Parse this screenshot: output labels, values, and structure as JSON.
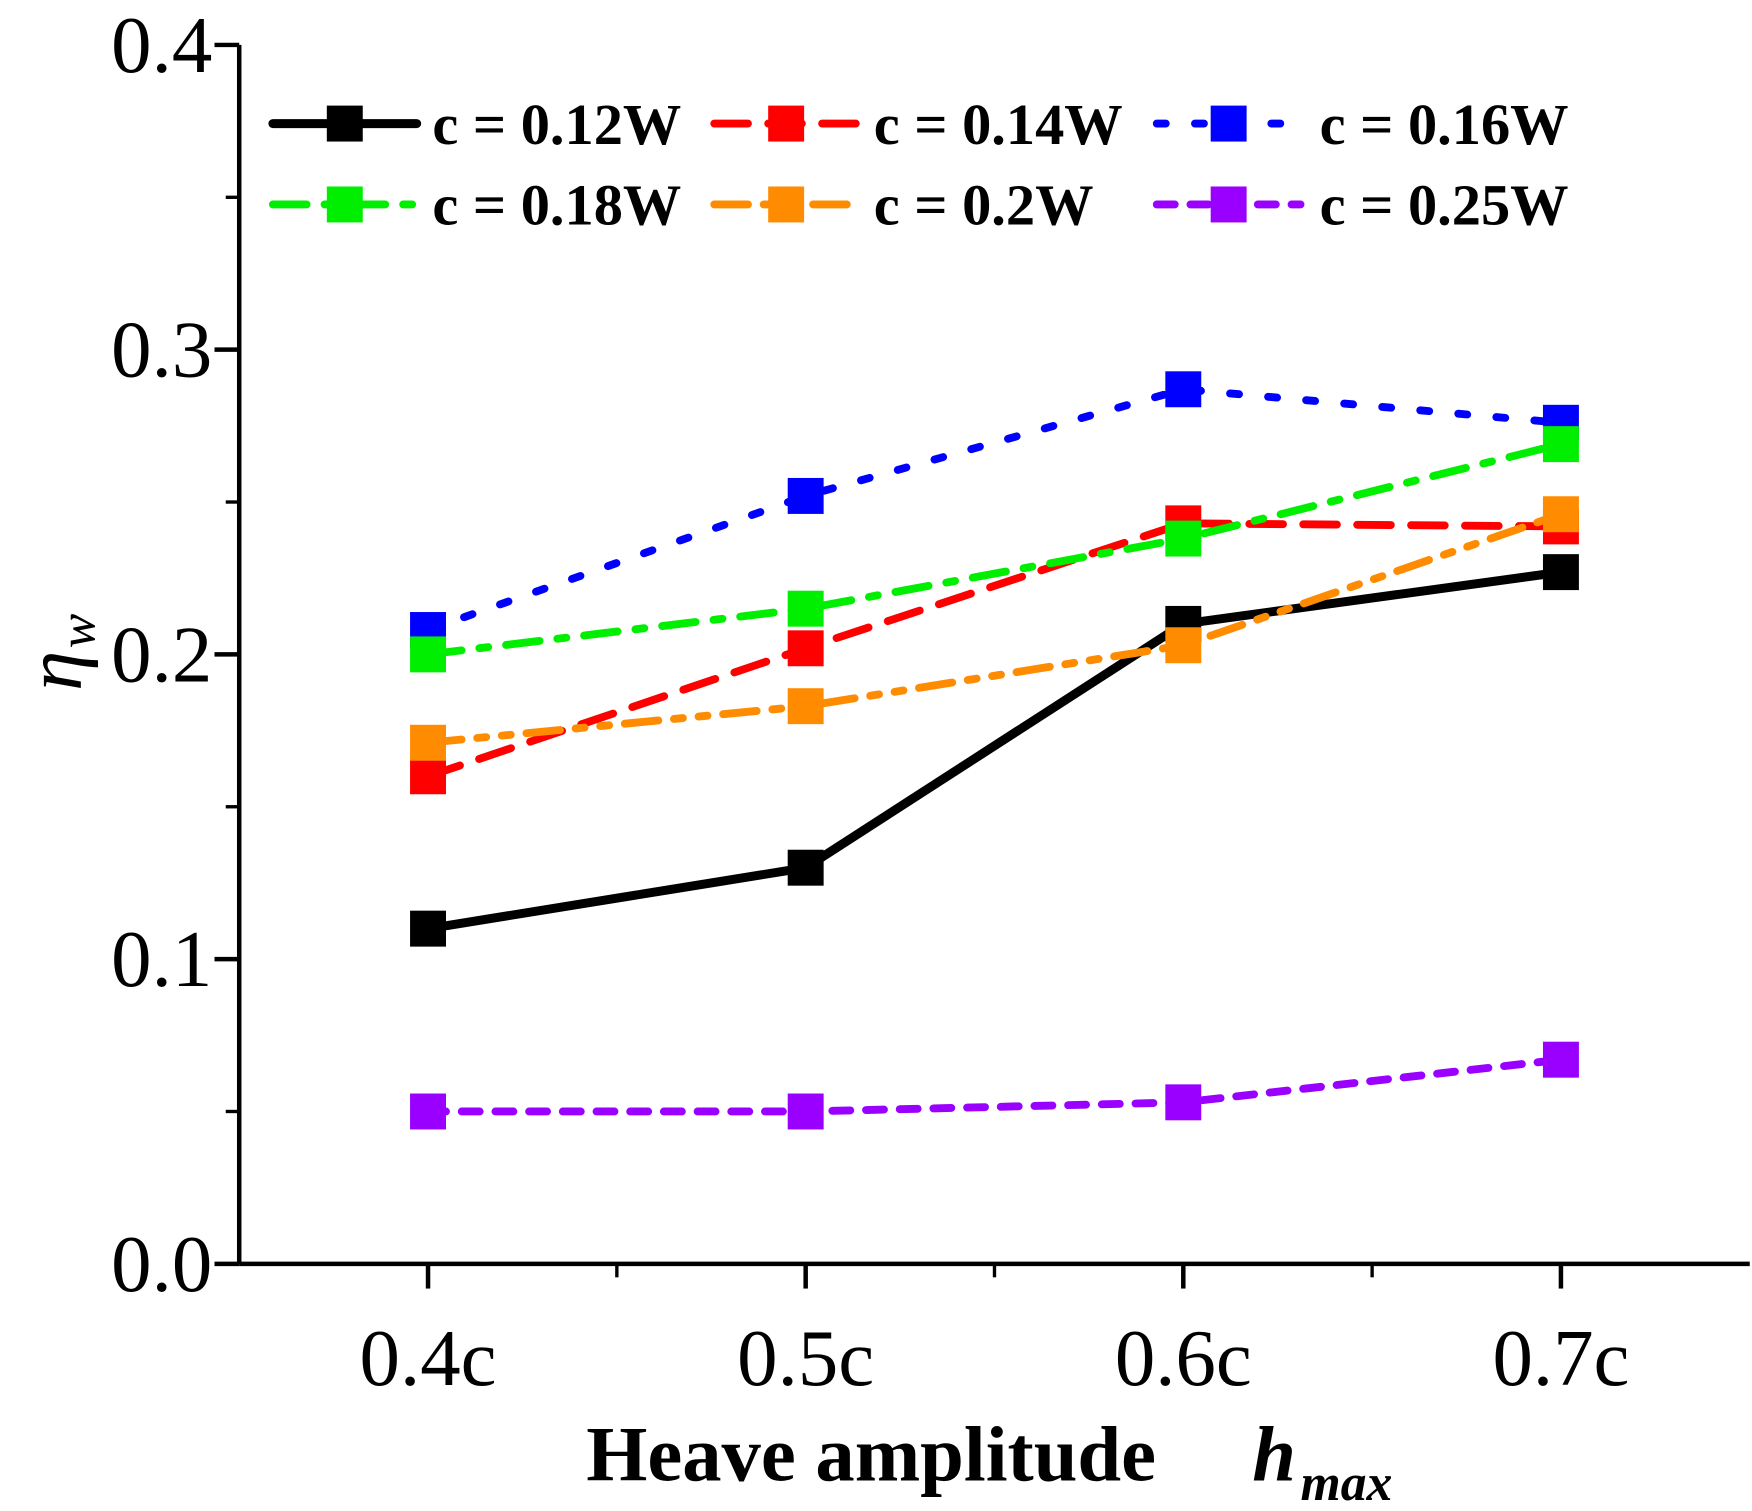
{
  "chart_data": {
    "type": "line",
    "title": "",
    "xlabel": "Heave amplitude",
    "xlabel_symbol": "h",
    "xlabel_subscript": "max",
    "ylabel_symbol": "η",
    "ylabel_subscript": "w",
    "categories": [
      "0.4c",
      "0.5c",
      "0.6c",
      "0.7c"
    ],
    "x": [
      0.4,
      0.5,
      0.6,
      0.7
    ],
    "xlim": [
      0.35,
      0.75
    ],
    "ylim": [
      0.0,
      0.4
    ],
    "yticks": [
      "0.0",
      "0.1",
      "0.2",
      "0.3",
      "0.4"
    ],
    "grid": false,
    "legend_position": "top",
    "series": [
      {
        "name": "c = 0.12W",
        "color": "#000000",
        "style": "solid",
        "values": [
          0.11,
          0.13,
          0.21,
          0.227
        ]
      },
      {
        "name": "c = 0.14W",
        "color": "#ff0000",
        "style": "dash",
        "values": [
          0.16,
          0.202,
          0.243,
          0.242
        ]
      },
      {
        "name": "c = 0.16W",
        "color": "#0000ff",
        "style": "dot",
        "values": [
          0.208,
          0.252,
          0.287,
          0.276
        ]
      },
      {
        "name": "c = 0.18W",
        "color": "#00ee00",
        "style": "dashdot",
        "values": [
          0.2,
          0.215,
          0.238,
          0.269
        ]
      },
      {
        "name": "c = 0.2W",
        "color": "#ff8c00",
        "style": "dashdotdot",
        "values": [
          0.171,
          0.183,
          0.203,
          0.246
        ]
      },
      {
        "name": "c = 0.25W",
        "color": "#9900ff",
        "style": "shortdash",
        "values": [
          0.05,
          0.05,
          0.053,
          0.067
        ]
      }
    ]
  }
}
